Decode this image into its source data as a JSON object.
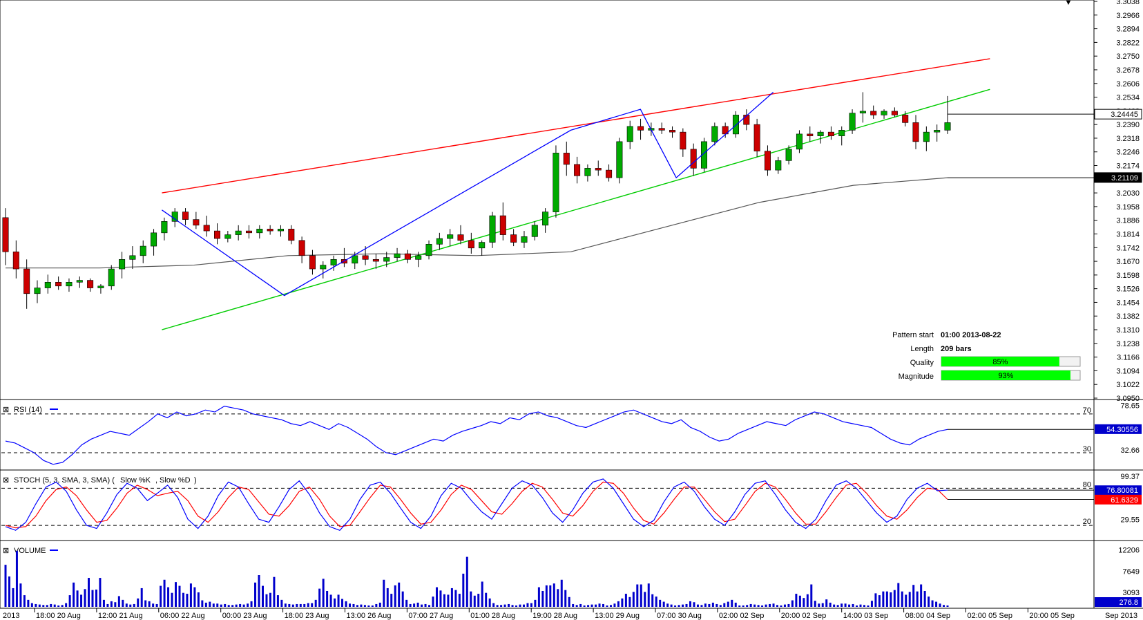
{
  "chart_data": {
    "type": "candlestick",
    "instrument_note": "",
    "main_panel": {
      "price_axis_ticks": [
        "3.3038",
        "3.2966",
        "3.2894",
        "3.2822",
        "3.2750",
        "3.2678",
        "3.2606",
        "3.2534",
        "3.2462",
        "3.2390",
        "3.2318",
        "3.2246",
        "3.2174",
        "3.2102",
        "3.2030",
        "3.1958",
        "3.1886",
        "3.1814",
        "3.1742",
        "3.1670",
        "3.1598",
        "3.1526",
        "3.1454",
        "3.1382",
        "3.1310",
        "3.1238",
        "3.1166",
        "3.1094",
        "3.1022",
        "3.0950"
      ],
      "ylim": [
        3.095,
        3.3038
      ],
      "price_flags": [
        {
          "label": "3.24445",
          "value": 3.24445,
          "bg": "#ffffff",
          "fg": "#000000"
        },
        {
          "label": "3.21109",
          "value": 3.21109,
          "bg": "#000000",
          "fg": "#ffffff"
        }
      ],
      "candles": [
        [
          3.19,
          3.195,
          3.165,
          3.172
        ],
        [
          3.172,
          3.178,
          3.158,
          3.163
        ],
        [
          3.163,
          3.168,
          3.142,
          3.15
        ],
        [
          3.15,
          3.157,
          3.145,
          3.153
        ],
        [
          3.153,
          3.16,
          3.15,
          3.156
        ],
        [
          3.156,
          3.159,
          3.152,
          3.154
        ],
        [
          3.154,
          3.158,
          3.151,
          3.156
        ],
        [
          3.156,
          3.159,
          3.153,
          3.157
        ],
        [
          3.157,
          3.158,
          3.151,
          3.153
        ],
        [
          3.153,
          3.155,
          3.15,
          3.154
        ],
        [
          3.154,
          3.165,
          3.152,
          3.163
        ],
        [
          3.163,
          3.172,
          3.158,
          3.168
        ],
        [
          3.168,
          3.175,
          3.163,
          3.17
        ],
        [
          3.17,
          3.178,
          3.166,
          3.175
        ],
        [
          3.175,
          3.184,
          3.17,
          3.182
        ],
        [
          3.182,
          3.19,
          3.178,
          3.188
        ],
        [
          3.188,
          3.195,
          3.185,
          3.193
        ],
        [
          3.193,
          3.195,
          3.186,
          3.189
        ],
        [
          3.189,
          3.193,
          3.184,
          3.186
        ],
        [
          3.186,
          3.191,
          3.18,
          3.183
        ],
        [
          3.183,
          3.187,
          3.176,
          3.179
        ],
        [
          3.179,
          3.183,
          3.177,
          3.181
        ],
        [
          3.181,
          3.186,
          3.178,
          3.183
        ],
        [
          3.183,
          3.186,
          3.179,
          3.182
        ],
        [
          3.182,
          3.186,
          3.179,
          3.184
        ],
        [
          3.184,
          3.186,
          3.181,
          3.183
        ],
        [
          3.183,
          3.186,
          3.18,
          3.184
        ],
        [
          3.184,
          3.186,
          3.176,
          3.178
        ],
        [
          3.178,
          3.18,
          3.166,
          3.17
        ],
        [
          3.17,
          3.173,
          3.16,
          3.163
        ],
        [
          3.163,
          3.167,
          3.158,
          3.165
        ],
        [
          3.165,
          3.17,
          3.162,
          3.168
        ],
        [
          3.168,
          3.174,
          3.164,
          3.166
        ],
        [
          3.166,
          3.172,
          3.163,
          3.17
        ],
        [
          3.17,
          3.175,
          3.165,
          3.168
        ],
        [
          3.168,
          3.171,
          3.163,
          3.167
        ],
        [
          3.167,
          3.172,
          3.164,
          3.169
        ],
        [
          3.169,
          3.174,
          3.167,
          3.171
        ],
        [
          3.171,
          3.173,
          3.166,
          3.168
        ],
        [
          3.168,
          3.172,
          3.164,
          3.17
        ],
        [
          3.17,
          3.178,
          3.168,
          3.176
        ],
        [
          3.176,
          3.182,
          3.173,
          3.179
        ],
        [
          3.179,
          3.184,
          3.175,
          3.181
        ],
        [
          3.181,
          3.186,
          3.176,
          3.178
        ],
        [
          3.178,
          3.182,
          3.171,
          3.174
        ],
        [
          3.174,
          3.178,
          3.17,
          3.177
        ],
        [
          3.177,
          3.193,
          3.174,
          3.191
        ],
        [
          3.191,
          3.198,
          3.178,
          3.181
        ],
        [
          3.181,
          3.184,
          3.175,
          3.177
        ],
        [
          3.177,
          3.183,
          3.174,
          3.18
        ],
        [
          3.18,
          3.188,
          3.178,
          3.186
        ],
        [
          3.186,
          3.195,
          3.182,
          3.193
        ],
        [
          3.193,
          3.228,
          3.19,
          3.224
        ],
        [
          3.224,
          3.23,
          3.212,
          3.218
        ],
        [
          3.218,
          3.222,
          3.208,
          3.212
        ],
        [
          3.212,
          3.218,
          3.209,
          3.216
        ],
        [
          3.216,
          3.22,
          3.212,
          3.215
        ],
        [
          3.215,
          3.218,
          3.209,
          3.211
        ],
        [
          3.211,
          3.232,
          3.208,
          3.23
        ],
        [
          3.23,
          3.241,
          3.226,
          3.238
        ],
        [
          3.238,
          3.242,
          3.231,
          3.236
        ],
        [
          3.236,
          3.24,
          3.233,
          3.237
        ],
        [
          3.237,
          3.24,
          3.234,
          3.236
        ],
        [
          3.236,
          3.238,
          3.232,
          3.235
        ],
        [
          3.235,
          3.237,
          3.222,
          3.226
        ],
        [
          3.226,
          3.229,
          3.212,
          3.216
        ],
        [
          3.216,
          3.232,
          3.214,
          3.23
        ],
        [
          3.23,
          3.24,
          3.228,
          3.238
        ],
        [
          3.238,
          3.24,
          3.232,
          3.234
        ],
        [
          3.234,
          3.246,
          3.232,
          3.244
        ],
        [
          3.244,
          3.247,
          3.236,
          3.239
        ],
        [
          3.239,
          3.242,
          3.222,
          3.225
        ],
        [
          3.225,
          3.228,
          3.212,
          3.215
        ],
        [
          3.215,
          3.222,
          3.213,
          3.22
        ],
        [
          3.22,
          3.228,
          3.218,
          3.226
        ],
        [
          3.226,
          3.236,
          3.224,
          3.234
        ],
        [
          3.234,
          3.238,
          3.23,
          3.233
        ],
        [
          3.233,
          3.236,
          3.229,
          3.235
        ],
        [
          3.235,
          3.238,
          3.231,
          3.233
        ],
        [
          3.233,
          3.238,
          3.228,
          3.236
        ],
        [
          3.236,
          3.247,
          3.234,
          3.245
        ],
        [
          3.245,
          3.256,
          3.24,
          3.246
        ],
        [
          3.246,
          3.249,
          3.242,
          3.244
        ],
        [
          3.244,
          3.247,
          3.242,
          3.246
        ],
        [
          3.246,
          3.248,
          3.243,
          3.244
        ],
        [
          3.244,
          3.246,
          3.238,
          3.24
        ],
        [
          3.24,
          3.244,
          3.226,
          3.23
        ],
        [
          3.23,
          3.238,
          3.225,
          3.235
        ],
        [
          3.235,
          3.239,
          3.23,
          3.236
        ],
        [
          3.236,
          3.254,
          3.234,
          3.24
        ]
      ],
      "moving_average": [
        [
          0.0,
          3.1635
        ],
        [
          0.1,
          3.1635
        ],
        [
          0.2,
          3.165
        ],
        [
          0.3,
          3.17
        ],
        [
          0.4,
          3.171
        ],
        [
          0.5,
          3.17
        ],
        [
          0.6,
          3.172
        ],
        [
          0.7,
          3.185
        ],
        [
          0.8,
          3.198
        ],
        [
          0.9,
          3.207
        ],
        [
          1.0,
          3.211
        ]
      ],
      "trend_lines": [
        {
          "name": "resistance",
          "color": "#ff0000",
          "from": [
            0.166,
            3.203
          ],
          "to": [
            1.0,
            3.27
          ]
        },
        {
          "name": "support",
          "color": "#00cc00",
          "from": [
            0.166,
            3.131
          ],
          "to": [
            1.0,
            3.251
          ]
        }
      ],
      "zigzag": [
        [
          0.166,
          3.194
        ],
        [
          0.296,
          3.149
        ],
        [
          0.6,
          3.236
        ],
        [
          0.674,
          3.247
        ],
        [
          0.712,
          3.211
        ],
        [
          0.815,
          3.256
        ]
      ],
      "pattern_info": {
        "pattern_start_label": "Pattern start",
        "pattern_start_value": "01:00 2013-08-22",
        "length_label": "Length",
        "length_value": "209 bars",
        "quality_label": "Quality",
        "quality_pct": 85,
        "quality_text": "85%",
        "magnitude_label": "Magnitude",
        "magnitude_pct": 93,
        "magnitude_text": "93%"
      }
    },
    "rsi_panel": {
      "title": "RSI (14)",
      "levels": [
        {
          "value": 70,
          "label": "70"
        },
        {
          "value": 30,
          "label": "30"
        }
      ],
      "axis_ticks": [
        "78.65",
        "32.66"
      ],
      "ylim": [
        15,
        82
      ],
      "last_value_label": "54.30556",
      "last_value": 54.30556,
      "series": [
        42,
        40,
        35,
        30,
        22,
        18,
        20,
        28,
        38,
        44,
        48,
        52,
        50,
        48,
        55,
        62,
        70,
        66,
        72,
        68,
        70,
        74,
        72,
        78,
        76,
        74,
        70,
        68,
        66,
        64,
        60,
        58,
        62,
        58,
        54,
        60,
        56,
        50,
        44,
        36,
        30,
        28,
        32,
        36,
        40,
        44,
        42,
        48,
        52,
        55,
        58,
        62,
        60,
        66,
        64,
        70,
        72,
        68,
        66,
        62,
        58,
        56,
        60,
        64,
        68,
        72,
        74,
        70,
        66,
        62,
        60,
        64,
        56,
        52,
        46,
        42,
        44,
        50,
        54,
        58,
        62,
        60,
        58,
        64,
        68,
        72,
        70,
        66,
        62,
        60,
        58,
        56,
        50,
        44,
        40,
        38,
        44,
        48,
        52,
        54
      ]
    },
    "stoch_panel": {
      "title_prefix": "STOCH (5, 3, SMA, 3, SMA)",
      "k_label": "Slow %K",
      "d_label": "Slow %D",
      "k_color": "#0000ff",
      "d_color": "#ff0000",
      "levels": [
        {
          "value": 80,
          "label": "80"
        },
        {
          "value": 20,
          "label": "20"
        }
      ],
      "axis_ticks": [
        "99.37",
        "29.55"
      ],
      "ylim": [
        0,
        105
      ],
      "last_k_label": "76.80081",
      "last_k": 76.80081,
      "last_d_label": "61.6329",
      "last_d": 61.6329,
      "k_series": [
        18,
        12,
        25,
        55,
        82,
        90,
        75,
        45,
        20,
        15,
        40,
        70,
        88,
        80,
        60,
        72,
        85,
        65,
        30,
        15,
        35,
        68,
        90,
        82,
        55,
        30,
        25,
        50,
        78,
        92,
        70,
        40,
        18,
        12,
        30,
        62,
        85,
        90,
        72,
        48,
        25,
        15,
        35,
        68,
        88,
        80,
        60,
        42,
        30,
        55,
        80,
        92,
        85,
        65,
        40,
        25,
        45,
        72,
        90,
        95,
        80,
        55,
        30,
        18,
        28,
        58,
        82,
        90,
        75,
        50,
        30,
        20,
        42,
        70,
        88,
        92,
        70,
        45,
        25,
        15,
        30,
        60,
        85,
        92,
        80,
        60,
        40,
        25,
        35,
        62,
        80,
        88,
        76,
        77
      ],
      "d_series": [
        20,
        16,
        18,
        35,
        60,
        78,
        82,
        68,
        45,
        25,
        28,
        48,
        72,
        85,
        78,
        68,
        72,
        75,
        60,
        35,
        25,
        42,
        65,
        82,
        78,
        58,
        38,
        35,
        52,
        75,
        82,
        62,
        35,
        18,
        20,
        42,
        65,
        85,
        82,
        62,
        40,
        22,
        25,
        45,
        70,
        85,
        78,
        60,
        42,
        38,
        55,
        75,
        88,
        82,
        62,
        40,
        35,
        52,
        75,
        90,
        88,
        72,
        48,
        28,
        22,
        40,
        62,
        82,
        82,
        62,
        42,
        26,
        30,
        52,
        75,
        88,
        82,
        62,
        40,
        22,
        22,
        42,
        65,
        85,
        88,
        72,
        52,
        35,
        30,
        45,
        65,
        80,
        78,
        62
      ]
    },
    "volume_panel": {
      "title": "VOLUME",
      "axis_ticks": [
        "12206",
        "7649",
        "3093"
      ],
      "ylim": [
        0,
        13600
      ],
      "last_value_label": "276.8",
      "last_value": 276.8,
      "bar_color": "#0000cc",
      "values": [
        9000,
        6500,
        4000,
        12000,
        5000,
        2500,
        1500,
        800,
        600,
        500,
        400,
        400,
        600,
        500,
        300,
        400,
        800,
        2500,
        5200,
        3500,
        2600,
        3800,
        6200,
        3600,
        3700,
        6200,
        1500,
        600,
        1200,
        1000,
        2300,
        1500,
        700,
        500,
        600,
        1800,
        4000,
        1400,
        1200,
        700,
        600,
        4500,
        5800,
        4200,
        3000,
        5300,
        4500,
        3000,
        2800,
        5000,
        4200,
        3100,
        1400,
        900,
        1100,
        700,
        700,
        500,
        600,
        400,
        400,
        500,
        600,
        500,
        700,
        1200,
        5200,
        6800,
        4500,
        2700,
        3000,
        6400,
        2500,
        1500,
        700,
        600,
        500,
        600,
        600,
        600,
        800,
        800,
        1500,
        3900,
        6000,
        3400,
        2600,
        1800,
        2600,
        1700,
        1200,
        700,
        600,
        400,
        500,
        400,
        300,
        300,
        600,
        900,
        5800,
        4000,
        2800,
        4600,
        5200,
        3300,
        1500,
        600,
        700,
        900,
        500,
        600,
        400,
        2200,
        4200,
        3500,
        2700,
        2600,
        4000,
        3600,
        2800,
        7100,
        10700,
        3300,
        2400,
        2800,
        5400,
        3000,
        1800,
        800,
        400,
        400,
        500,
        600,
        400,
        300,
        500,
        500,
        800,
        800,
        1500,
        4200,
        3400,
        4600,
        4600,
        5000,
        3800,
        5800,
        3600,
        2100,
        600,
        400,
        600,
        300,
        400,
        500,
        500,
        700,
        600,
        300,
        400,
        700,
        1200,
        1800,
        2800,
        2100,
        3200,
        4800,
        4800,
        3200,
        5000,
        2700,
        2200,
        1500,
        1100,
        700,
        500,
        300,
        400,
        500,
        600,
        1200,
        1000,
        500,
        400,
        700,
        600,
        900,
        600,
        400,
        800,
        1100,
        1500,
        900,
        300,
        300,
        400,
        600,
        500,
        400,
        300,
        500,
        600,
        700,
        400,
        300,
        500,
        600,
        1400,
        2800,
        2400,
        1900,
        2700,
        4800,
        1300,
        700,
        800,
        1600,
        900,
        500,
        400,
        700,
        700,
        500,
        600,
        300,
        500,
        400,
        300,
        1300,
        2900,
        2500,
        3300,
        3300,
        3100,
        3600,
        5100,
        3300,
        2600,
        3200,
        4700,
        3300,
        4800,
        3400,
        2200,
        1400,
        1100,
        700,
        400,
        300
      ],
      "volume_note": ""
    },
    "time_axis_labels": [
      "2013",
      "18:00 20 Aug",
      "12:00 21 Aug",
      "06:00 22 Aug",
      "00:00 23 Aug",
      "18:00 23 Aug",
      "13:00 26 Aug",
      "07:00 27 Aug",
      "01:00 28 Aug",
      "19:00 28 Aug",
      "13:00 29 Aug",
      "07:00 30 Aug",
      "02:00 02 Sep",
      "20:00 02 Sep",
      "14:00 03 Sep",
      "08:00 04 Sep",
      "02:00 05 Sep",
      "20:00 05 Sep",
      "Sep 2013"
    ]
  },
  "ui": {
    "close_glyph": "⊠",
    "arrow_glyph": "▼",
    "icons": [
      "close-panel-icon",
      "dropdown-arrow-icon"
    ],
    "colors": {
      "up_candle": "#00aa00",
      "down_candle": "#cc0000",
      "ma_line": "#555555",
      "zigzag": "#0000ff",
      "gauge_fill": "#00ff00"
    }
  }
}
